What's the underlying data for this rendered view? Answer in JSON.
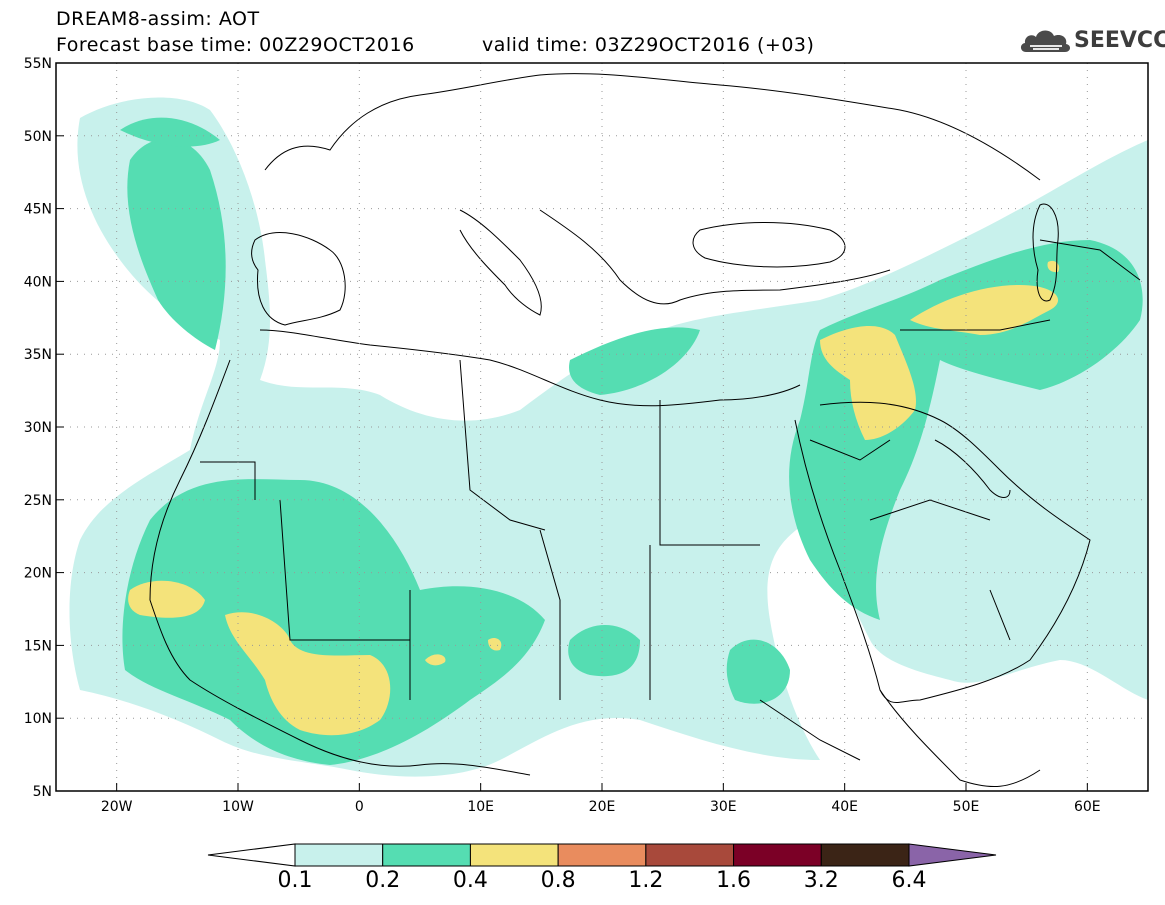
{
  "header": {
    "line1": "DREAM8-assim: AOT",
    "line2": "Forecast base time: 00Z29OCT2016",
    "line3": "valid time: 03Z29OCT2016 (+03)"
  },
  "logo": {
    "text": "SEEVCCC",
    "icon": "cloud-icon"
  },
  "map": {
    "lon_range": [
      -25,
      65
    ],
    "lat_range": [
      5,
      55
    ],
    "lon_ticks": [
      "20W",
      "10W",
      "0",
      "10E",
      "20E",
      "30E",
      "40E",
      "50E",
      "60E"
    ],
    "lon_tick_values": [
      -20,
      -10,
      0,
      10,
      20,
      30,
      40,
      50,
      60
    ],
    "lat_ticks": [
      "5N",
      "10N",
      "15N",
      "20N",
      "25N",
      "30N",
      "35N",
      "40N",
      "45N",
      "50N",
      "55N"
    ],
    "lat_tick_values": [
      5,
      10,
      15,
      20,
      25,
      30,
      35,
      40,
      45,
      50,
      55
    ],
    "grid": "dotted"
  },
  "colorbar": {
    "labels": [
      "0.1",
      "0.2",
      "0.4",
      "0.8",
      "1.2",
      "1.6",
      "3.2",
      "6.4"
    ],
    "colors": [
      "#ffffff",
      "#c8f1ec",
      "#55ddb2",
      "#f4e37b",
      "#e98c5e",
      "#a8493b",
      "#7b0026",
      "#3b2416",
      "#8a64a8"
    ]
  }
}
